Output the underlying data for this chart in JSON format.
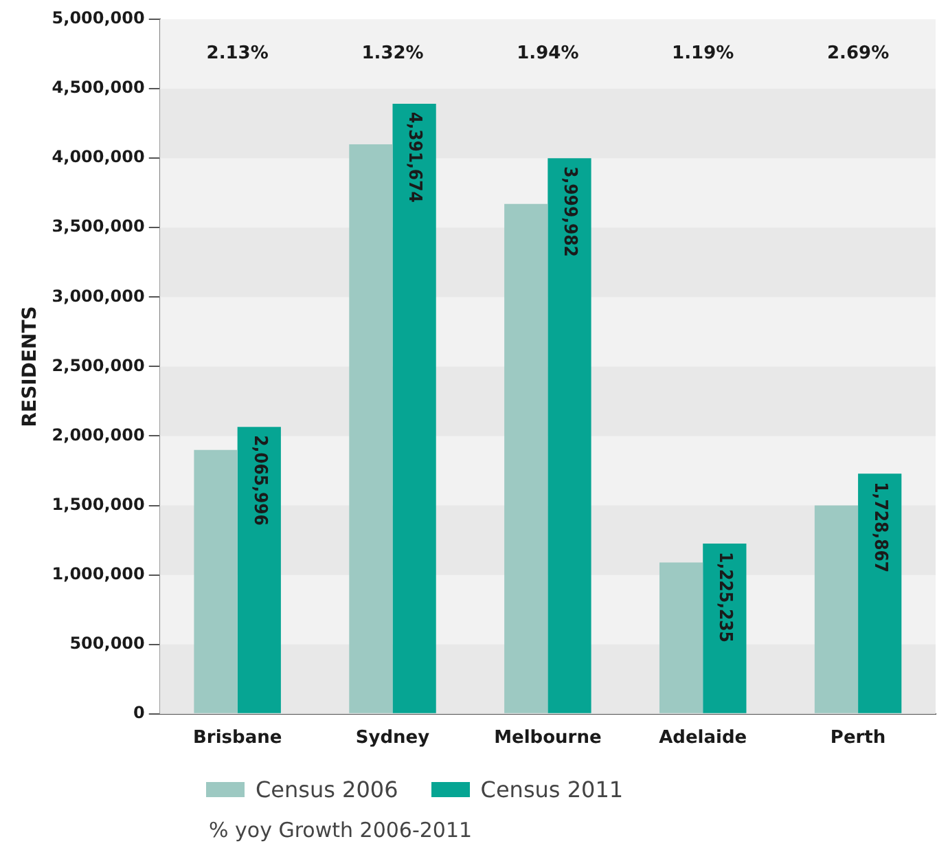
{
  "chart_data": {
    "type": "bar",
    "ylabel": "RESIDENTS",
    "categories": [
      "Brisbane",
      "Sydney",
      "Melbourne",
      "Adelaide",
      "Perth"
    ],
    "series": [
      {
        "name": "Census 2006",
        "color": "#9dc9c2",
        "values": [
          1900000,
          4100000,
          3670000,
          1090000,
          1500000
        ]
      },
      {
        "name": "Census 2011",
        "color": "#06a593",
        "values": [
          2065996,
          4391674,
          3999982,
          1225235,
          1728867
        ],
        "value_labels": [
          "2,065,996",
          "4,391,674",
          "3,999,982",
          "1,225,235",
          "1,728,867"
        ]
      }
    ],
    "ylim": [
      0,
      5000000
    ],
    "yticks": [
      {
        "value": 0,
        "label": "0"
      },
      {
        "value": 500000,
        "label": "500,000"
      },
      {
        "value": 1000000,
        "label": "1,000,000"
      },
      {
        "value": 1500000,
        "label": "1,500,000"
      },
      {
        "value": 2000000,
        "label": "2,000,000"
      },
      {
        "value": 2500000,
        "label": "2,500,000"
      },
      {
        "value": 3000000,
        "label": "3,000,000"
      },
      {
        "value": 3500000,
        "label": "3,500,000"
      },
      {
        "value": 4000000,
        "label": "4,000,000"
      },
      {
        "value": 4500000,
        "label": "4,500,000"
      },
      {
        "value": 5000000,
        "label": "5,000,000"
      }
    ],
    "legend": "bottom",
    "annotations": [
      "2.13%",
      "1.32%",
      "1.94%",
      "1.19%",
      "2.69%",
      "% yoy Growth 2006-2011"
    ]
  }
}
